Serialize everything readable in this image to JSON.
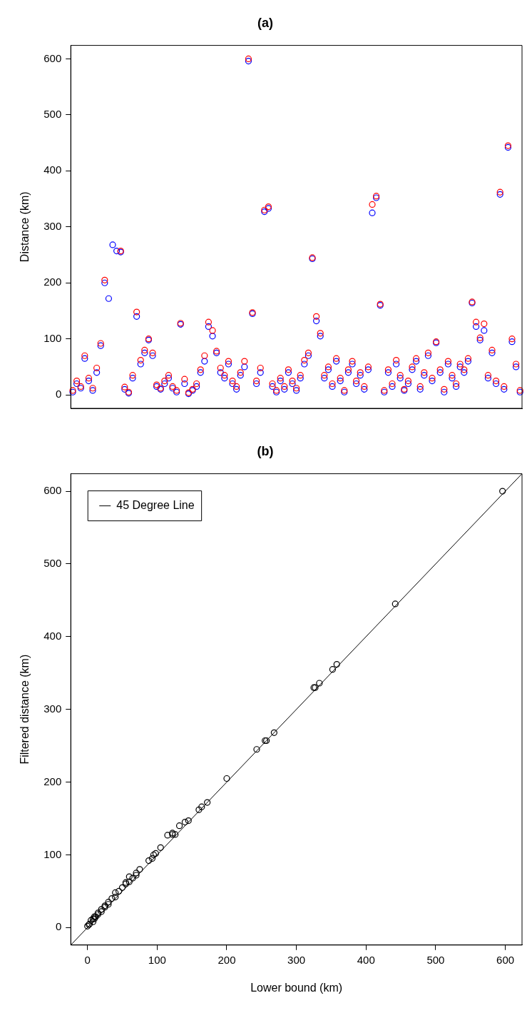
{
  "chart_data": [
    {
      "type": "scatter",
      "title": "(a)",
      "ylabel": "Distance (km)",
      "marker": "circle",
      "grid": false,
      "ylim": [
        -24,
        624
      ],
      "yticks": [
        0,
        100,
        200,
        300,
        400,
        500,
        600
      ],
      "categories": [
        null,
        null,
        null,
        null,
        null,
        null,
        null,
        null,
        null,
        null,
        null,
        null,
        null,
        null,
        null,
        null,
        null,
        null,
        null,
        null,
        null,
        null,
        null,
        null,
        null,
        null,
        null,
        null,
        null,
        null,
        null,
        null,
        null,
        null,
        null,
        null,
        null,
        null,
        null,
        null,
        null,
        null,
        null,
        null,
        null,
        null,
        null,
        null,
        null,
        null,
        null,
        null,
        null,
        null,
        null,
        null,
        null,
        null,
        null,
        null,
        null,
        null,
        null,
        null,
        null,
        null,
        null,
        null,
        null,
        null,
        null,
        null,
        null,
        null,
        null,
        null,
        null,
        null,
        null,
        null,
        null,
        null,
        null,
        null,
        null,
        null,
        null,
        null,
        null,
        null,
        null,
        null,
        null,
        null,
        null,
        null,
        null,
        null,
        null,
        null,
        null,
        null,
        null,
        null,
        null,
        null,
        null,
        null,
        null,
        null,
        null,
        null,
        null
      ],
      "series": [
        {
          "color": "#ff0000",
          "values": [
            8,
            25,
            15,
            70,
            30,
            12,
            48,
            92,
            205,
            null,
            null,
            null,
            257,
            14,
            5,
            35,
            148,
            62,
            80,
            100,
            75,
            18,
            12,
            25,
            35,
            15,
            8,
            128,
            28,
            4,
            10,
            20,
            45,
            70,
            130,
            115,
            78,
            48,
            35,
            60,
            25,
            15,
            40,
            60,
            600,
            147,
            25,
            48,
            330,
            336,
            20,
            8,
            30,
            15,
            45,
            25,
            12,
            35,
            62,
            75,
            245,
            140,
            110,
            35,
            50,
            20,
            65,
            30,
            8,
            45,
            60,
            25,
            40,
            15,
            50,
            340,
            355,
            162,
            8,
            45,
            20,
            62,
            35,
            10,
            25,
            50,
            65,
            15,
            40,
            75,
            30,
            95,
            45,
            10,
            60,
            35,
            20,
            55,
            45,
            65,
            166,
            130,
            102,
            127,
            35,
            80,
            25,
            362,
            15,
            445,
            100,
            55,
            8
          ]
        },
        {
          "color": "#0000ff",
          "values": [
            5,
            20,
            12,
            65,
            25,
            8,
            40,
            88,
            200,
            172,
            268,
            257,
            255,
            10,
            3,
            30,
            140,
            55,
            75,
            98,
            70,
            15,
            10,
            20,
            30,
            12,
            5,
            126,
            20,
            2,
            8,
            15,
            40,
            60,
            122,
            105,
            75,
            40,
            30,
            55,
            20,
            10,
            35,
            50,
            596,
            145,
            20,
            40,
            327,
            333,
            15,
            5,
            25,
            10,
            40,
            20,
            8,
            30,
            55,
            70,
            243,
            132,
            105,
            30,
            45,
            15,
            60,
            25,
            5,
            40,
            55,
            20,
            35,
            10,
            45,
            325,
            352,
            160,
            5,
            40,
            15,
            55,
            30,
            8,
            20,
            45,
            60,
            10,
            35,
            70,
            25,
            93,
            40,
            5,
            55,
            30,
            15,
            50,
            40,
            60,
            164,
            122,
            98,
            115,
            30,
            75,
            20,
            358,
            10,
            442,
            95,
            50,
            5
          ]
        }
      ]
    },
    {
      "type": "scatter",
      "title": "(b)",
      "xlabel": "Lower bound (km)",
      "ylabel": "Filtered distance (km)",
      "grid": false,
      "legend": "top left",
      "xlim": [
        -24,
        624
      ],
      "xticks": [
        0,
        100,
        200,
        300,
        400,
        500,
        600
      ],
      "ylim": [
        -24,
        624
      ],
      "yticks": [
        0,
        100,
        200,
        300,
        400,
        500,
        600
      ],
      "series": [
        {
          "marker": "circle",
          "color": "#000000",
          "x": [
            0,
            2,
            3,
            5,
            8,
            8,
            10,
            10,
            12,
            15,
            15,
            20,
            20,
            25,
            25,
            30,
            30,
            35,
            40,
            40,
            45,
            50,
            55,
            55,
            60,
            60,
            65,
            70,
            70,
            75,
            88,
            93,
            95,
            98,
            105,
            115,
            122,
            122,
            126,
            132,
            140,
            145,
            160,
            164,
            172,
            200,
            243,
            255,
            257,
            268,
            325,
            327,
            333,
            352,
            358,
            442,
            596
          ],
          "values": [
            2,
            4,
            5,
            10,
            8,
            12,
            12,
            15,
            15,
            18,
            20,
            22,
            25,
            28,
            30,
            32,
            35,
            40,
            42,
            48,
            50,
            55,
            60,
            62,
            63,
            70,
            68,
            72,
            75,
            80,
            92,
            95,
            100,
            102,
            110,
            127,
            128,
            130,
            128,
            140,
            145,
            147,
            162,
            166,
            172,
            205,
            245,
            257,
            257,
            268,
            330,
            330,
            336,
            355,
            362,
            445,
            600
          ]
        },
        {
          "type": "line",
          "name": "45 Degree Line",
          "color": "#000000",
          "x": [
            -24,
            624
          ],
          "values": [
            -24,
            624
          ]
        }
      ]
    }
  ]
}
